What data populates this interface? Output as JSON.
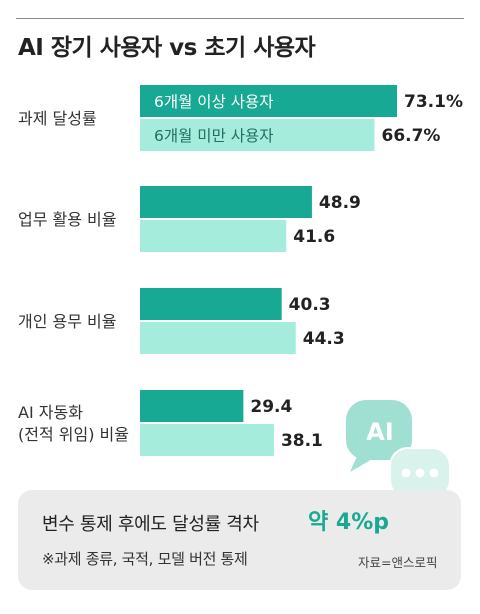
{
  "title": "AI 장기 사용자 vs 초기 사용자",
  "chart_data": {
    "type": "bar",
    "orientation": "horizontal",
    "categories": [
      [
        "과제 달성률"
      ],
      [
        "업무 활용 비율"
      ],
      [
        "개인 용무 비율"
      ],
      [
        "AI 자동화",
        "(전적 위임) 비율"
      ]
    ],
    "series": [
      {
        "name": "6개월 이상 사용자",
        "values": [
          73.1,
          48.9,
          40.3,
          29.4
        ],
        "labels": [
          "73.1%",
          "48.9",
          "40.3",
          "29.4"
        ],
        "color": "#17a993"
      },
      {
        "name": "6개월 미만 사용자",
        "values": [
          66.7,
          41.6,
          44.3,
          38.1
        ],
        "labels": [
          "66.7%",
          "41.6",
          "44.3",
          "38.1"
        ],
        "color": "#a6ecdc"
      }
    ],
    "xlim": [
      0,
      73.1
    ],
    "legend": "inside-bars",
    "grid": false
  },
  "note": {
    "main": "변수 통제 후에도 달성률 격차",
    "gap": "약 4%p",
    "sub": "※과제 종류, 국적, 모델 버전 통제",
    "source": "자료=앤스로픽"
  },
  "decoration": {
    "bubble_text": "AI",
    "bubble_color": "#9fe0d3",
    "bubble_small_color": "#d9f2ec",
    "icon": "chat-bubbles-icon"
  }
}
